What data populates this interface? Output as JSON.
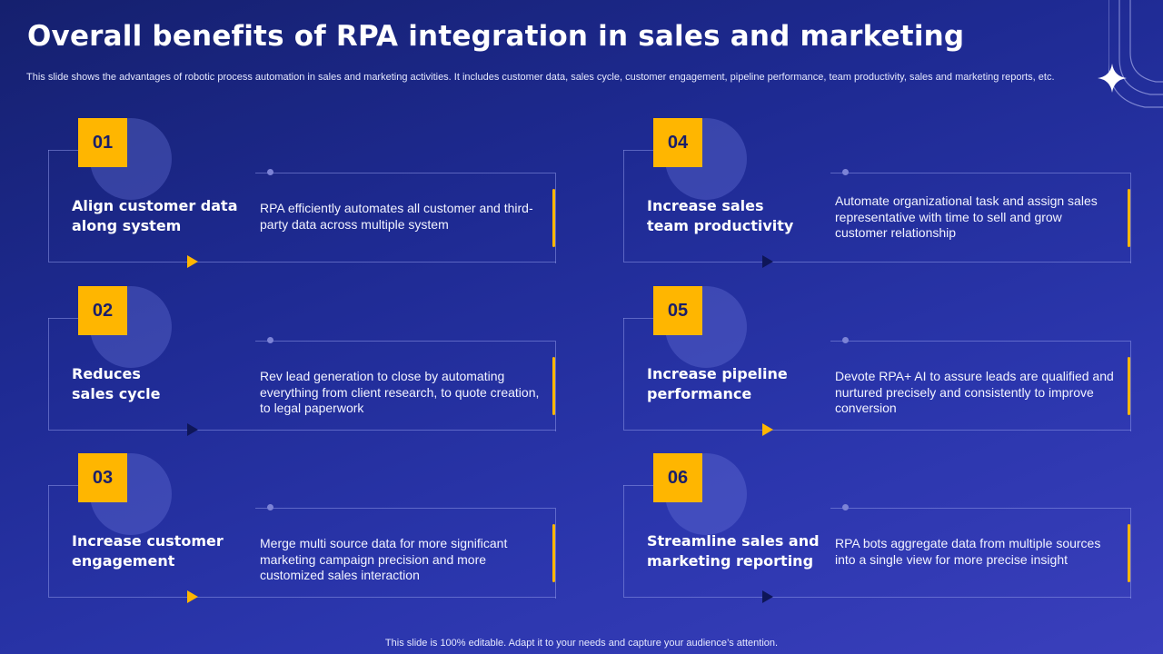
{
  "header": {
    "title": "Overall benefits of RPA integration in sales and marketing",
    "subtitle": "This slide shows the advantages of robotic process automation in sales and marketing activities. It includes customer data, sales cycle, customer engagement, pipeline performance, team productivity, sales and marketing reports, etc."
  },
  "colors": {
    "accent": "#ffb600",
    "background": "#1e2a92"
  },
  "benefits": [
    {
      "number": "01",
      "title": "Align customer data along system",
      "description": "RPA efficiently automates all customer and third-party data across multiple  system"
    },
    {
      "number": "02",
      "title": "Reduces sales cycle",
      "description": "Rev lead generation to close by automating everything from client research, to quote creation, to legal paperwork"
    },
    {
      "number": "03",
      "title": "Increase customer engagement",
      "description": "Merge multi source data for more significant marketing campaign precision and more customized sales interaction"
    },
    {
      "number": "04",
      "title": "Increase sales team productivity",
      "description": "Automate organizational task and assign sales representative with time to sell and grow customer relationship"
    },
    {
      "number": "05",
      "title": "Increase pipeline performance",
      "description": "Devote RPA+ AI to assure leads are qualified and nurtured precisely and consistently to improve conversion"
    },
    {
      "number": "06",
      "title": "Streamline sales and marketing reporting",
      "description": "RPA bots aggregate data from multiple sources into a single view for more precise insight"
    }
  ],
  "footer": {
    "text": "This slide is 100% editable. Adapt it to your needs and capture your audience’s attention."
  }
}
